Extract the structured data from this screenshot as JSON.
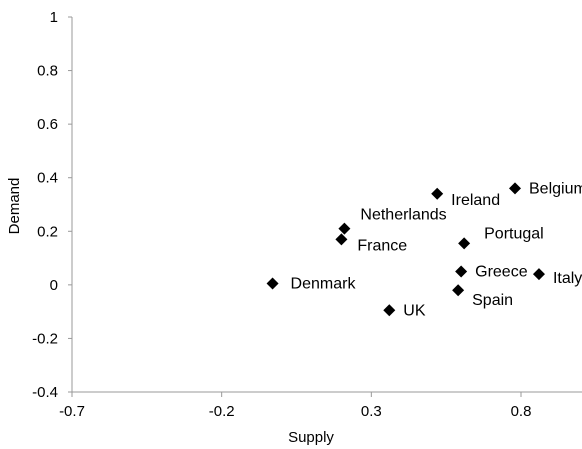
{
  "chart_data": {
    "type": "scatter",
    "title": "",
    "xlabel": "Supply",
    "ylabel": "Demand",
    "xlim": [
      -0.7,
      1.05
    ],
    "ylim": [
      -0.4,
      1
    ],
    "x_ticks": [
      -0.7,
      -0.2,
      0.3,
      0.8
    ],
    "x_tick_labels": [
      "-0.7",
      "-0.2",
      "0.3",
      "0.8"
    ],
    "y_ticks": [
      -0.4,
      -0.2,
      0,
      0.2,
      0.4,
      0.6,
      0.8,
      1
    ],
    "y_tick_labels": [
      "-0.4",
      "-0.2",
      "0",
      "0.2",
      "0.4",
      "0.6",
      "0.8",
      "1"
    ],
    "grid": false,
    "marker": "diamond",
    "marker_color": "#000000",
    "points": [
      {
        "label": "Belgium",
        "x": 0.78,
        "y": 0.36
      },
      {
        "label": "Ireland",
        "x": 0.52,
        "y": 0.34
      },
      {
        "label": "Netherlands",
        "x": 0.21,
        "y": 0.21
      },
      {
        "label": "France",
        "x": 0.2,
        "y": 0.17
      },
      {
        "label": "Portugal",
        "x": 0.61,
        "y": 0.155
      },
      {
        "label": "Denmark",
        "x": -0.03,
        "y": 0.005
      },
      {
        "label": "Greece",
        "x": 0.6,
        "y": 0.05
      },
      {
        "label": "Italy",
        "x": 0.86,
        "y": 0.04
      },
      {
        "label": "Spain",
        "x": 0.59,
        "y": -0.02
      },
      {
        "label": "UK",
        "x": 0.36,
        "y": -0.095
      }
    ]
  }
}
